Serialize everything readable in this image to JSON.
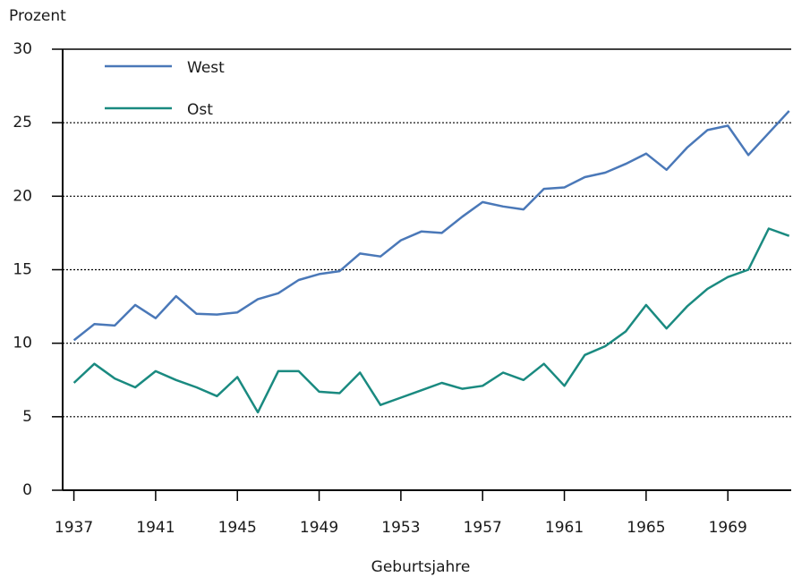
{
  "chart_data": {
    "type": "line",
    "y_label": "Prozent",
    "x_label": "Geburtsjahre",
    "x": [
      1937,
      1938,
      1939,
      1940,
      1941,
      1942,
      1943,
      1944,
      1945,
      1946,
      1947,
      1948,
      1949,
      1950,
      1951,
      1952,
      1953,
      1954,
      1955,
      1956,
      1957,
      1958,
      1959,
      1960,
      1961,
      1962,
      1963,
      1964,
      1965,
      1966,
      1967,
      1968,
      1969,
      1970,
      1971,
      1972
    ],
    "series": [
      {
        "name": "West",
        "color": "#4a78b8",
        "values": [
          10.2,
          11.3,
          11.2,
          12.6,
          11.7,
          13.2,
          12.0,
          11.95,
          12.1,
          13.0,
          13.4,
          14.3,
          14.7,
          14.9,
          16.1,
          15.9,
          17.0,
          17.6,
          17.5,
          18.6,
          19.6,
          19.3,
          19.1,
          20.5,
          20.6,
          21.3,
          21.6,
          22.2,
          22.9,
          21.8,
          23.3,
          24.5,
          24.8,
          22.8,
          24.3,
          25.8
        ]
      },
      {
        "name": "Ost",
        "color": "#1a8a80",
        "values": [
          7.3,
          8.6,
          7.6,
          7.0,
          8.1,
          7.5,
          7.0,
          6.4,
          7.7,
          5.3,
          8.1,
          8.1,
          6.7,
          6.6,
          8.0,
          5.8,
          6.3,
          6.8,
          7.3,
          6.9,
          7.1,
          8.0,
          7.5,
          8.6,
          7.1,
          9.2,
          9.8,
          10.8,
          12.6,
          11.0,
          12.5,
          13.7,
          14.5,
          15.0,
          17.8,
          17.3
        ]
      }
    ],
    "xlim": [
      1936.45,
      1972.1
    ],
    "xticks": [
      1937,
      1941,
      1945,
      1949,
      1953,
      1957,
      1961,
      1965,
      1969
    ],
    "ylim": [
      0,
      30
    ],
    "yticks": [
      0,
      5,
      10,
      15,
      20,
      25,
      30
    ],
    "grid": true,
    "legend": "top-left"
  }
}
